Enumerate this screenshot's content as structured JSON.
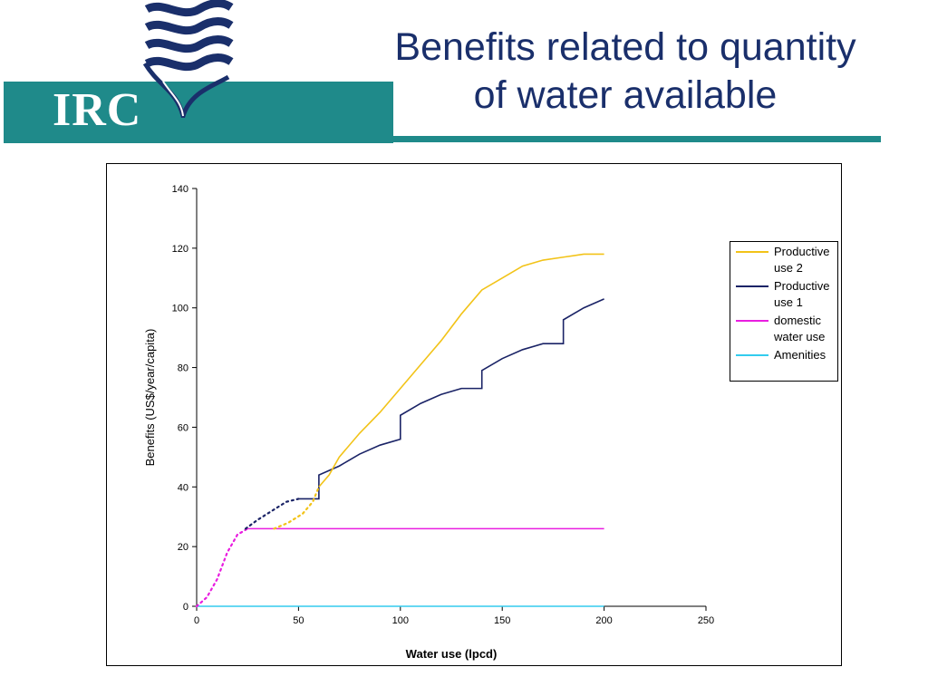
{
  "header": {
    "logo_text": "IRC",
    "title_line1": "Benefits related to quantity",
    "title_line2": "of water available",
    "brand_color": "#1f8a8a",
    "title_color": "#1a2f6b"
  },
  "chart_data": {
    "type": "line",
    "xlabel": "Water use (lpcd)",
    "ylabel": "Benefits (US$/year/capita)",
    "xlim": [
      0,
      250
    ],
    "ylim": [
      0,
      140
    ],
    "xticks": [
      0,
      50,
      100,
      150,
      200,
      250
    ],
    "yticks": [
      0,
      20,
      40,
      60,
      80,
      100,
      120,
      140
    ],
    "grid": false,
    "legend_position": "right",
    "series": [
      {
        "name": "Productive use 2",
        "color": "#f2c318",
        "dotted": [
          [
            38,
            26
          ],
          [
            45,
            28
          ],
          [
            52,
            31
          ],
          [
            57,
            35
          ],
          [
            60,
            40
          ]
        ],
        "values": [
          [
            60,
            40
          ],
          [
            65,
            44
          ],
          [
            70,
            50
          ],
          [
            80,
            58
          ],
          [
            90,
            65
          ],
          [
            100,
            73
          ],
          [
            110,
            81
          ],
          [
            120,
            89
          ],
          [
            130,
            98
          ],
          [
            140,
            106
          ],
          [
            150,
            110
          ],
          [
            160,
            114
          ],
          [
            170,
            116
          ],
          [
            180,
            117
          ],
          [
            190,
            118
          ],
          [
            200,
            118
          ]
        ]
      },
      {
        "name": "Productive use 1",
        "color": "#1a2366",
        "dotted": [
          [
            24,
            26
          ],
          [
            30,
            29
          ],
          [
            37,
            32
          ],
          [
            44,
            35
          ],
          [
            50,
            36
          ]
        ],
        "values": [
          [
            50,
            36
          ],
          [
            60,
            36
          ],
          [
            60,
            44
          ],
          [
            70,
            47
          ],
          [
            80,
            51
          ],
          [
            90,
            54
          ],
          [
            100,
            56
          ],
          [
            100,
            64
          ],
          [
            110,
            68
          ],
          [
            120,
            71
          ],
          [
            130,
            73
          ],
          [
            140,
            73
          ],
          [
            140,
            79
          ],
          [
            150,
            83
          ],
          [
            160,
            86
          ],
          [
            170,
            88
          ],
          [
            180,
            88
          ],
          [
            180,
            96
          ],
          [
            190,
            100
          ],
          [
            200,
            103
          ]
        ]
      },
      {
        "name": "domestic water use",
        "color": "#e91ee0",
        "dotted": [
          [
            0,
            0
          ],
          [
            5,
            3
          ],
          [
            10,
            9
          ],
          [
            15,
            18
          ],
          [
            20,
            24
          ],
          [
            25,
            26
          ]
        ],
        "values": [
          [
            25,
            26
          ],
          [
            200,
            26
          ]
        ]
      },
      {
        "name": "Amenities",
        "color": "#33ccee",
        "dotted": [],
        "values": [
          [
            0,
            0
          ],
          [
            200,
            0
          ]
        ]
      }
    ]
  }
}
